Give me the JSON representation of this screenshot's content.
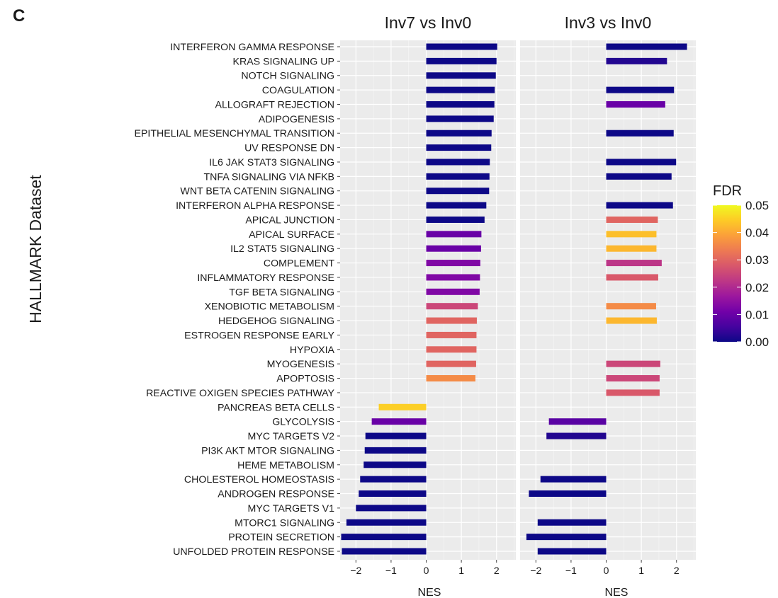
{
  "panel_letter": "C",
  "y_axis_title": "HALLMARK Dataset",
  "legend": {
    "title": "FDR",
    "ticks": [
      "0.05",
      "0.04",
      "0.03",
      "0.02",
      "0.01",
      "0.00"
    ],
    "tick_values": [
      0.05,
      0.04,
      0.03,
      0.02,
      0.01,
      0.0
    ],
    "colors": [
      "#0d0887",
      "#46039f",
      "#7201a8",
      "#9c179e",
      "#bd3786",
      "#d8576b",
      "#ed7953",
      "#fb9f3a",
      "#fdca26",
      "#f0f921"
    ]
  },
  "chart_data": {
    "type": "bar",
    "orientation": "horizontal",
    "categories": [
      "INTERFERON GAMMA RESPONSE",
      "KRAS SIGNALING UP",
      "NOTCH SIGNALING",
      "COAGULATION",
      "ALLOGRAFT REJECTION",
      "ADIPOGENESIS",
      "EPITHELIAL MESENCHYMAL TRANSITION",
      "UV RESPONSE DN",
      "IL6 JAK STAT3 SIGNALING",
      "TNFA SIGNALING VIA NFKB",
      "WNT BETA CATENIN SIGNALING",
      "INTERFERON ALPHA RESPONSE",
      "APICAL JUNCTION",
      "APICAL SURFACE",
      "IL2 STAT5 SIGNALING",
      "COMPLEMENT",
      "INFLAMMATORY RESPONSE",
      "TGF BETA SIGNALING",
      "XENOBIOTIC METABOLISM",
      "HEDGEHOG SIGNALING",
      "ESTROGEN RESPONSE EARLY",
      "HYPOXIA",
      "MYOGENESIS",
      "APOPTOSIS",
      "REACTIVE OXIGEN SPECIES PATHWAY",
      "PANCREAS BETA CELLS",
      "GLYCOLYSIS",
      "MYC TARGETS V2",
      "PI3K AKT MTOR SIGNALING",
      "HEME METABOLISM",
      "CHOLESTEROL HOMEOSTASIS",
      "ANDROGEN RESPONSE",
      "MYC TARGETS V1",
      "MTORC1 SIGNALING",
      "PROTEIN SECRETION",
      "UNFOLDED PROTEIN RESPONSE"
    ],
    "xlabel": "NES",
    "ylabel": "HALLMARK Dataset",
    "xlim": [
      -2.45,
      2.55
    ],
    "xticks": [
      -2,
      -1,
      0,
      1,
      2
    ],
    "xtick_labels": [
      "−2",
      "−1",
      "0",
      "1",
      "2"
    ],
    "grid": true,
    "panels": [
      {
        "title": "Inv7 vs Inv0",
        "nes": [
          2.02,
          2.0,
          1.98,
          1.95,
          1.94,
          1.92,
          1.86,
          1.85,
          1.81,
          1.8,
          1.79,
          1.71,
          1.66,
          1.57,
          1.56,
          1.54,
          1.53,
          1.52,
          1.47,
          1.44,
          1.43,
          1.43,
          1.42,
          1.4,
          null,
          -1.35,
          -1.55,
          -1.73,
          -1.75,
          -1.78,
          -1.88,
          -1.92,
          -2.0,
          -2.27,
          -2.42,
          -2.4
        ],
        "fdr": [
          0.0,
          0.0,
          0.0,
          0.0,
          0.0,
          0.0,
          0.0,
          0.0,
          0.0,
          0.0,
          0.0,
          0.0,
          0.0,
          0.01,
          0.01,
          0.013,
          0.013,
          0.013,
          0.025,
          0.03,
          0.03,
          0.03,
          0.03,
          0.036,
          null,
          0.045,
          0.01,
          0.0,
          0.0,
          0.0,
          0.0,
          0.0,
          0.0,
          0.0,
          0.0,
          0.0
        ]
      },
      {
        "title": "Inv3 vs Inv0",
        "nes": [
          2.3,
          1.73,
          null,
          1.93,
          1.68,
          null,
          1.92,
          null,
          1.99,
          1.86,
          null,
          1.9,
          1.47,
          1.43,
          1.43,
          1.58,
          1.48,
          null,
          1.42,
          1.44,
          null,
          null,
          1.54,
          1.52,
          1.52,
          null,
          -1.63,
          -1.7,
          null,
          null,
          -1.87,
          -2.2,
          null,
          -1.95,
          -2.27,
          -1.95
        ],
        "fdr": [
          0.0,
          0.002,
          null,
          0.0,
          0.01,
          null,
          0.0,
          null,
          0.0,
          0.0,
          null,
          0.0,
          0.03,
          0.043,
          0.042,
          0.022,
          0.028,
          null,
          0.036,
          0.042,
          null,
          null,
          0.025,
          0.025,
          0.028,
          null,
          0.008,
          0.002,
          null,
          null,
          0.0,
          0.0,
          null,
          0.0,
          0.0,
          0.0
        ]
      }
    ]
  }
}
